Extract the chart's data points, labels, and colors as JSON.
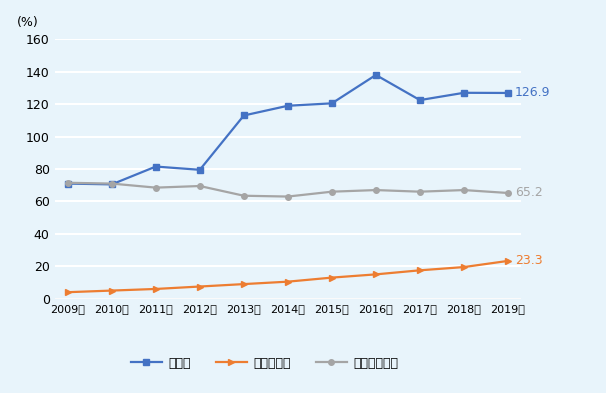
{
  "years": [
    2009,
    2010,
    2011,
    2012,
    2013,
    2014,
    2015,
    2016,
    2017,
    2018,
    2019
  ],
  "bahamas": [
    71.0,
    70.5,
    81.5,
    79.5,
    113.0,
    119.0,
    120.5,
    138.0,
    122.5,
    127.0,
    126.9
  ],
  "cambodia": [
    4.0,
    5.0,
    6.0,
    7.5,
    9.0,
    10.5,
    13.0,
    15.0,
    17.5,
    19.5,
    23.3
  ],
  "high_income": [
    71.5,
    71.0,
    68.5,
    69.5,
    63.5,
    63.0,
    66.0,
    67.0,
    66.0,
    67.0,
    65.2
  ],
  "bahamas_color": "#4472C4",
  "cambodia_color": "#ED7D31",
  "high_income_color": "#A5A5A5",
  "bg_color": "#E8F4FB",
  "grid_color": "#FFFFFF",
  "ylabel": "(%)",
  "ylim": [
    0,
    160
  ],
  "yticks": [
    0,
    20,
    40,
    60,
    80,
    100,
    120,
    140,
    160
  ],
  "xlabel_years": [
    "2009年",
    "2010年",
    "2011年",
    "2012年",
    "2013年",
    "2014年",
    "2015年",
    "2016年",
    "2017年",
    "2018年",
    "2019年"
  ],
  "legend_bahamas": "バハマ",
  "legend_cambodia": "カンボジア",
  "legend_high_income": "高所得国平均",
  "end_label_bahamas": "126.9",
  "end_label_cambodia": "23.3",
  "end_label_high_income": "65.2",
  "marker_size": 4,
  "line_width": 1.6
}
